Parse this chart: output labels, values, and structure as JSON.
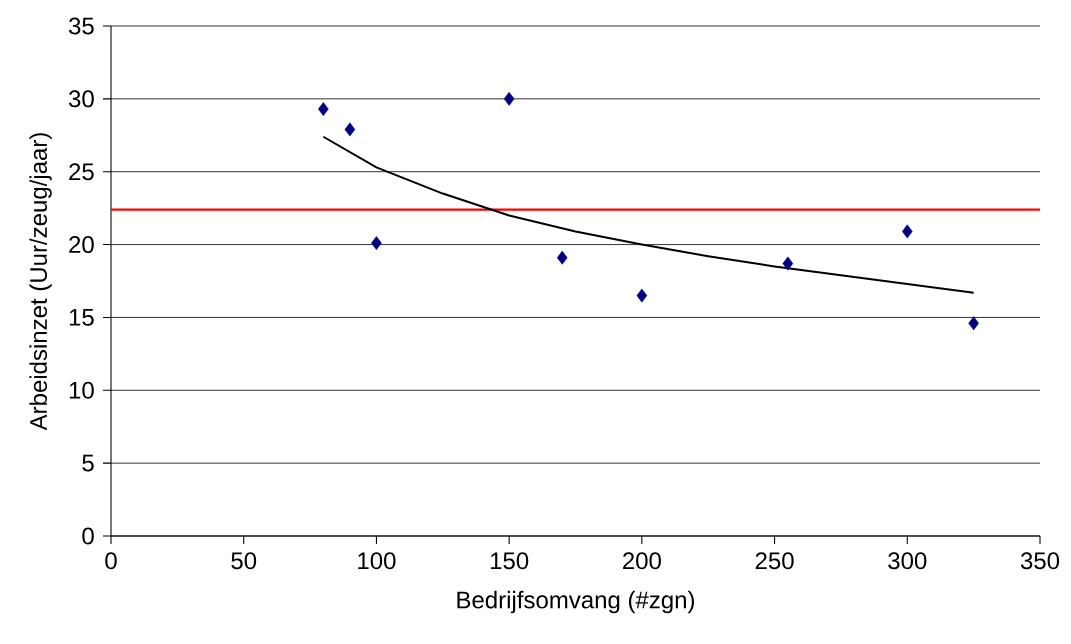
{
  "chart_data": {
    "type": "scatter",
    "xlabel": "Bedrijfsomvang (#zgn)",
    "ylabel": "Arbeidsinzet (Uur/zeug/jaar)",
    "x": [
      80,
      90,
      100,
      150,
      170,
      200,
      255,
      300,
      325
    ],
    "series": [
      {
        "color": "#000080",
        "marker": "diamond",
        "values": [
          29.3,
          27.9,
          20.1,
          30.0,
          19.1,
          16.5,
          18.7,
          20.9,
          14.6
        ]
      },
      {
        "type": "line",
        "color": "#000000",
        "marker": "none",
        "line_style": "solid",
        "x": [
          80,
          100,
          125,
          150,
          175,
          200,
          225,
          250,
          275,
          300,
          325
        ],
        "values": [
          27.4,
          25.3,
          23.5,
          22.0,
          20.9,
          20.0,
          19.2,
          18.5,
          17.9,
          17.3,
          16.7
        ]
      }
    ],
    "xlim": [
      0,
      350
    ],
    "xticks": [
      0,
      50,
      100,
      150,
      200,
      250,
      300,
      350
    ],
    "ylim": [
      0,
      35
    ],
    "yticks": [
      0,
      5,
      10,
      15,
      20,
      25,
      30,
      35
    ],
    "grid": "y",
    "ref_lines": [
      {
        "axis": "y",
        "value": 22.4,
        "color": "#ff0000"
      }
    ]
  }
}
